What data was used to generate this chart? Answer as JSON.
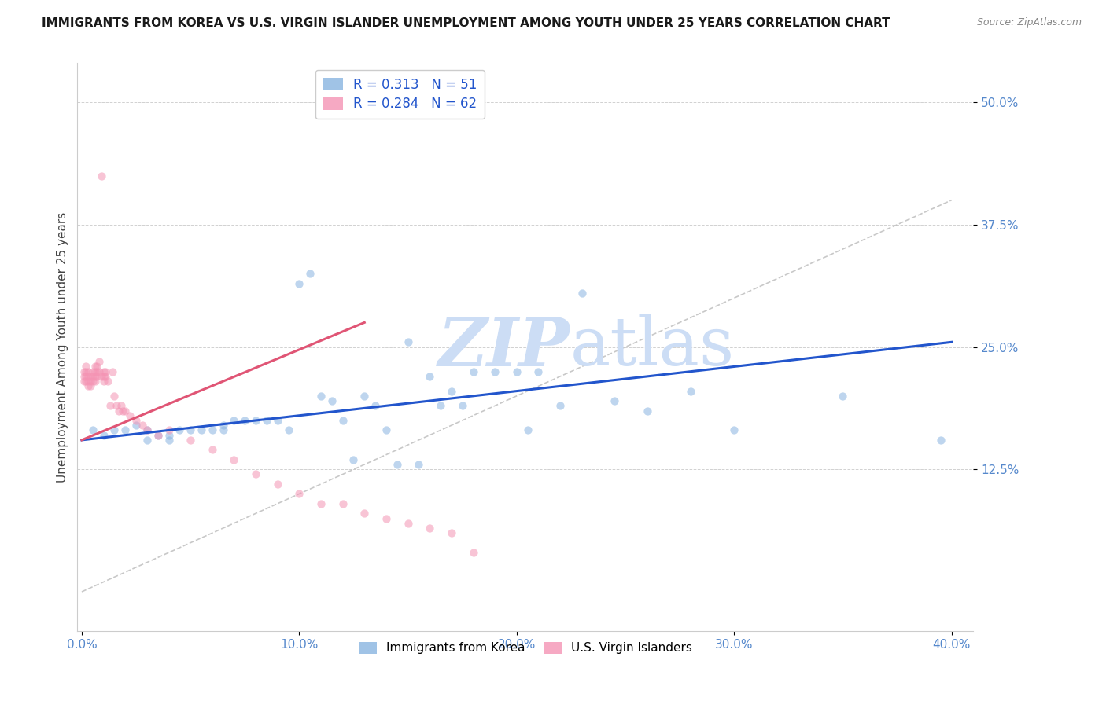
{
  "title": "IMMIGRANTS FROM KOREA VS U.S. VIRGIN ISLANDER UNEMPLOYMENT AMONG YOUTH UNDER 25 YEARS CORRELATION CHART",
  "source": "Source: ZipAtlas.com",
  "ylabel": "Unemployment Among Youth under 25 years",
  "xlabel_ticks": [
    "0.0%",
    "10.0%",
    "20.0%",
    "30.0%",
    "40.0%"
  ],
  "xlabel_vals": [
    0.0,
    0.1,
    0.2,
    0.3,
    0.4
  ],
  "ylabel_ticks": [
    "12.5%",
    "25.0%",
    "37.5%",
    "50.0%"
  ],
  "ylabel_vals": [
    0.125,
    0.25,
    0.375,
    0.5
  ],
  "xlim": [
    -0.002,
    0.41
  ],
  "ylim": [
    -0.04,
    0.54
  ],
  "legend1_label": "Immigrants from Korea",
  "legend2_label": "U.S. Virgin Islanders",
  "R1": "0.313",
  "N1": "51",
  "R2": "0.284",
  "N2": "62",
  "color_blue": "#89b4e0",
  "color_pink": "#f494b4",
  "trend_blue": "#2255cc",
  "trend_pink": "#e05575",
  "tick_color": "#5588cc",
  "watermark_color": "#ccddf5",
  "background_color": "#FFFFFF",
  "title_fontsize": 11,
  "scatter_alpha": 0.55,
  "scatter_size": 55,
  "blue_trend_x": [
    0.0,
    0.4
  ],
  "blue_trend_y": [
    0.155,
    0.255
  ],
  "pink_trend_x": [
    0.0,
    0.13
  ],
  "pink_trend_y": [
    0.155,
    0.275
  ],
  "diag_line_x": [
    0.0,
    0.4
  ],
  "diag_line_y": [
    0.0,
    0.4
  ],
  "blue_scatter_x": [
    0.005,
    0.01,
    0.015,
    0.02,
    0.025,
    0.03,
    0.03,
    0.035,
    0.04,
    0.04,
    0.045,
    0.05,
    0.055,
    0.06,
    0.065,
    0.065,
    0.07,
    0.075,
    0.08,
    0.085,
    0.09,
    0.095,
    0.1,
    0.105,
    0.11,
    0.115,
    0.12,
    0.125,
    0.13,
    0.135,
    0.14,
    0.145,
    0.15,
    0.155,
    0.16,
    0.165,
    0.17,
    0.175,
    0.18,
    0.19,
    0.2,
    0.205,
    0.21,
    0.22,
    0.23,
    0.245,
    0.26,
    0.28,
    0.3,
    0.35,
    0.395
  ],
  "blue_scatter_y": [
    0.165,
    0.16,
    0.165,
    0.165,
    0.17,
    0.165,
    0.155,
    0.16,
    0.16,
    0.155,
    0.165,
    0.165,
    0.165,
    0.165,
    0.17,
    0.165,
    0.175,
    0.175,
    0.175,
    0.175,
    0.175,
    0.165,
    0.315,
    0.325,
    0.2,
    0.195,
    0.175,
    0.135,
    0.2,
    0.19,
    0.165,
    0.13,
    0.255,
    0.13,
    0.22,
    0.19,
    0.205,
    0.19,
    0.225,
    0.225,
    0.225,
    0.165,
    0.225,
    0.19,
    0.305,
    0.195,
    0.185,
    0.205,
    0.165,
    0.2,
    0.155
  ],
  "pink_scatter_x": [
    0.001,
    0.001,
    0.001,
    0.002,
    0.002,
    0.002,
    0.002,
    0.003,
    0.003,
    0.003,
    0.003,
    0.004,
    0.004,
    0.004,
    0.005,
    0.005,
    0.005,
    0.006,
    0.006,
    0.006,
    0.006,
    0.007,
    0.007,
    0.007,
    0.008,
    0.008,
    0.009,
    0.009,
    0.01,
    0.01,
    0.01,
    0.011,
    0.011,
    0.012,
    0.013,
    0.014,
    0.015,
    0.016,
    0.017,
    0.018,
    0.019,
    0.02,
    0.022,
    0.025,
    0.028,
    0.03,
    0.035,
    0.04,
    0.05,
    0.06,
    0.07,
    0.08,
    0.09,
    0.1,
    0.11,
    0.12,
    0.13,
    0.14,
    0.15,
    0.16,
    0.17,
    0.18
  ],
  "pink_scatter_y": [
    0.225,
    0.22,
    0.215,
    0.23,
    0.225,
    0.22,
    0.215,
    0.225,
    0.22,
    0.215,
    0.21,
    0.22,
    0.215,
    0.21,
    0.225,
    0.22,
    0.215,
    0.23,
    0.225,
    0.22,
    0.215,
    0.23,
    0.225,
    0.22,
    0.235,
    0.225,
    0.425,
    0.22,
    0.225,
    0.22,
    0.215,
    0.225,
    0.22,
    0.215,
    0.19,
    0.225,
    0.2,
    0.19,
    0.185,
    0.19,
    0.185,
    0.185,
    0.18,
    0.175,
    0.17,
    0.165,
    0.16,
    0.165,
    0.155,
    0.145,
    0.135,
    0.12,
    0.11,
    0.1,
    0.09,
    0.09,
    0.08,
    0.075,
    0.07,
    0.065,
    0.06,
    0.04
  ]
}
